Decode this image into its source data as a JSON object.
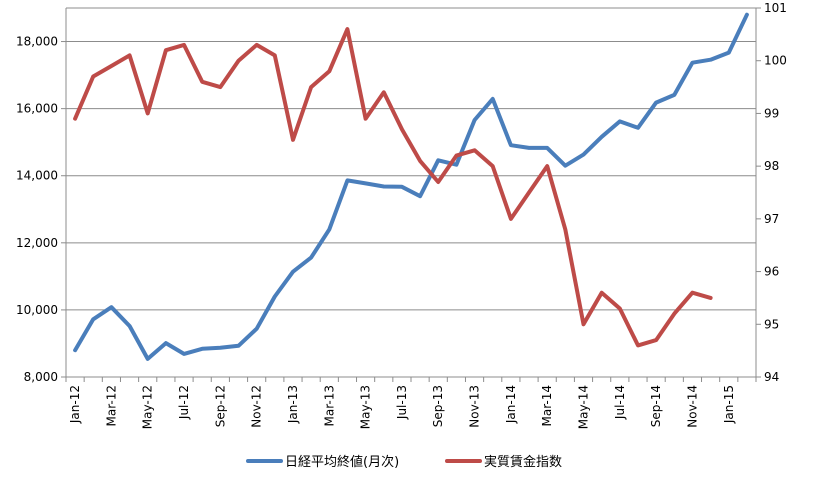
{
  "chart_data": {
    "type": "line",
    "title": "",
    "xlabel": "",
    "ylabel_left": "",
    "ylabel_right": "",
    "x_tick_labels": [
      "Jan-12",
      "Mar-12",
      "May-12",
      "Jul-12",
      "Sep-12",
      "Nov-12",
      "Jan-13",
      "Mar-13",
      "May-13",
      "Jul-13",
      "Sep-13",
      "Nov-13",
      "Jan-14",
      "Mar-14",
      "May-14",
      "Jul-14",
      "Sep-14",
      "Nov-14",
      "Jan-15"
    ],
    "y_left": {
      "min": 8000,
      "max": 19000,
      "ticks": [
        "8,000",
        "10,000",
        "12,000",
        "14,000",
        "16,000",
        "18,000"
      ]
    },
    "y_right": {
      "min": 94,
      "max": 101,
      "ticks": [
        "94",
        "95",
        "96",
        "97",
        "98",
        "99",
        "100",
        "101"
      ]
    },
    "grid": true,
    "legend_position": "bottom",
    "series": [
      {
        "name": "日経平均終値(月次)",
        "axis": "left",
        "color": "#4A7EBB",
        "values": [
          8800,
          9720,
          10080,
          9520,
          8540,
          9010,
          8690,
          8840,
          8870,
          8930,
          9440,
          10400,
          11140,
          11560,
          12400,
          13860,
          13770,
          13680,
          13670,
          13390,
          14460,
          14330,
          15660,
          16290,
          14910,
          14830,
          14830,
          14300,
          14630,
          15160,
          15620,
          15430,
          16180,
          16410,
          17370,
          17460,
          17670,
          18800
        ]
      },
      {
        "name": "実質賃金指数",
        "axis": "right",
        "color": "#BE4B48",
        "values": [
          98.9,
          99.7,
          99.9,
          100.1,
          99.0,
          100.2,
          100.3,
          99.6,
          99.5,
          100.0,
          100.3,
          100.1,
          98.5,
          99.5,
          99.8,
          100.6,
          98.9,
          99.4,
          98.7,
          98.1,
          97.7,
          98.2,
          98.3,
          98.0,
          97.0,
          97.5,
          98.0,
          96.8,
          95.0,
          95.6,
          95.3,
          94.6,
          94.7,
          95.2,
          95.6,
          95.5
        ]
      }
    ]
  }
}
